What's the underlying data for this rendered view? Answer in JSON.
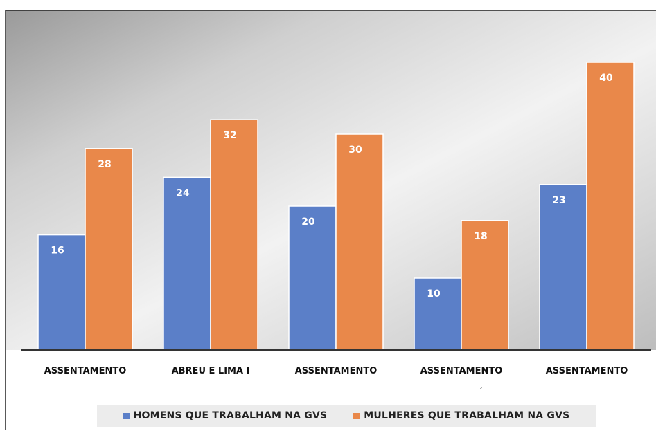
{
  "chart_data": {
    "type": "bar",
    "categories": [
      "ASSENTAMENTO",
      "ABREU E LIMA I",
      "ASSENTAMENTO",
      "ASSENTAMENTO",
      "ASSENTAMENTO"
    ],
    "series": [
      {
        "name": "HOMENS QUE TRABALHAM NA GVS",
        "values": [
          16,
          24,
          20,
          10,
          23
        ],
        "color": "#5b7fc8"
      },
      {
        "name": "MULHERES QUE TRABALHAM NA GVS",
        "values": [
          28,
          32,
          30,
          18,
          40
        ],
        "color": "#e9884a"
      }
    ],
    "title": "",
    "xlabel": "",
    "ylabel": "",
    "ylim": [
      0,
      42
    ],
    "grid": false,
    "legend": "bottom",
    "stray_mark": "´"
  }
}
